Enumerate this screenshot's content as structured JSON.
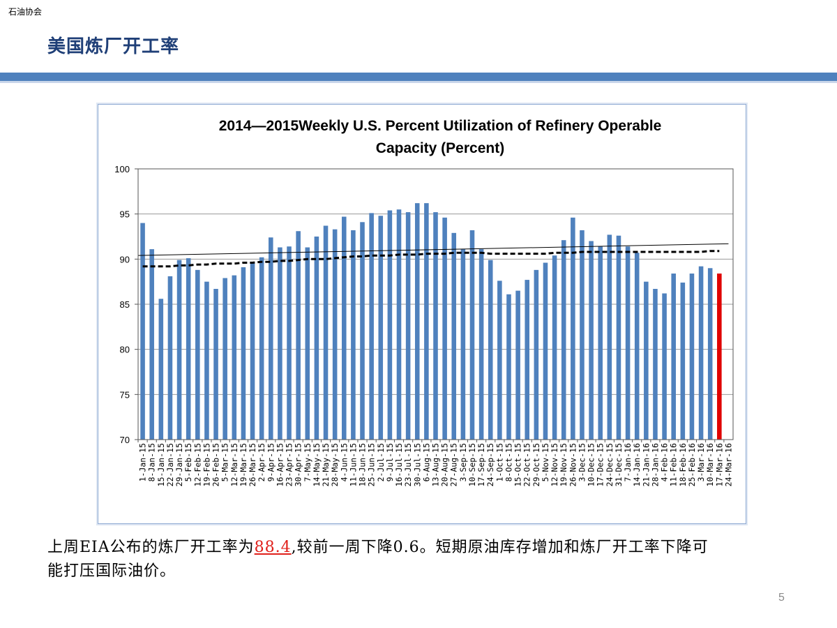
{
  "header": {
    "org": "石油协会",
    "title": "美国炼厂开工率"
  },
  "body": {
    "line1_prefix": "上周EIA公布的炼厂开工率为",
    "highlight": "88.4",
    "line1_suffix": ",较前一周下降0.6。短期原油库存增加和炼厂开工率下降可",
    "line2": "能打压国际油价。"
  },
  "page_number": "5",
  "colors": {
    "bar": "#4f81bd",
    "last_bar": "#e00000",
    "title": "#1f3f77",
    "accent": "#4f81bd"
  },
  "chart_data": {
    "type": "bar",
    "title_line1": "2014—2015Weekly U.S. Percent Utilization of Refinery Operable",
    "title_line2": "Capacity (Percent)",
    "xlabel": "",
    "ylabel": "",
    "ylim": [
      70,
      100
    ],
    "yticks": [
      70,
      75,
      80,
      85,
      90,
      95,
      100
    ],
    "grid": true,
    "categories": [
      "1-Jan-15",
      "8-Jan-15",
      "15-Jan-15",
      "22-Jan-15",
      "29-Jan-15",
      "5-Feb-15",
      "12-Feb-15",
      "19-Feb-15",
      "26-Feb-15",
      "5-Mar-15",
      "12-Mar-15",
      "19-Mar-15",
      "26-Mar-15",
      "2-Apr-15",
      "9-Apr-15",
      "16-Apr-15",
      "23-Apr-15",
      "30-Apr-15",
      "7-May-15",
      "14-May-15",
      "21-May-15",
      "28-May-15",
      "4-Jun-15",
      "11-Jun-15",
      "18-Jun-15",
      "25-Jun-15",
      "2-Jul-15",
      "9-Jul-15",
      "16-Jul-15",
      "23-Jul-15",
      "30-Jul-15",
      "6-Aug-15",
      "13-Aug-15",
      "20-Aug-15",
      "27-Aug-15",
      "3-Sep-15",
      "10-Sep-15",
      "17-Sep-15",
      "24-Sep-15",
      "1-Oct-15",
      "8-Oct-15",
      "15-Oct-15",
      "22-Oct-15",
      "29-Oct-15",
      "5-Nov-15",
      "12-Nov-15",
      "19-Nov-15",
      "26-Nov-15",
      "3-Dec-15",
      "10-Dec-15",
      "17-Dec-15",
      "24-Dec-15",
      "31-Dec-15",
      "7-Jan-16",
      "14-Jan-16",
      "21-Jan-16",
      "28-Jan-16",
      "4-Feb-16",
      "11-Feb-16",
      "18-Feb-16",
      "25-Feb-16",
      "3-Mar-16",
      "10-Mar-16",
      "17-Mar-16",
      "24-Mar-16"
    ],
    "values": [
      94.0,
      91.1,
      85.6,
      88.1,
      89.9,
      90.1,
      88.8,
      87.5,
      86.7,
      87.9,
      88.2,
      89.1,
      89.6,
      90.2,
      92.4,
      91.3,
      91.4,
      93.1,
      91.3,
      92.5,
      93.7,
      93.3,
      94.7,
      93.2,
      94.1,
      95.1,
      94.8,
      95.4,
      95.5,
      95.2,
      96.2,
      96.2,
      95.2,
      94.6,
      92.9,
      91.1,
      93.2,
      91.1,
      89.9,
      87.6,
      86.1,
      86.5,
      87.7,
      88.8,
      89.6,
      90.4,
      92.1,
      94.6,
      93.2,
      92.0,
      91.4,
      92.7,
      92.6,
      91.4,
      90.7,
      87.5,
      86.7,
      86.2,
      88.4,
      87.4,
      88.4,
      89.2,
      89.0,
      88.4,
      null
    ],
    "highlight_index": 63,
    "avg_line": {
      "style": "dashed",
      "values": [
        89.2,
        89.2,
        89.2,
        89.2,
        89.3,
        89.3,
        89.4,
        89.4,
        89.5,
        89.5,
        89.5,
        89.6,
        89.6,
        89.7,
        89.7,
        89.8,
        89.8,
        89.9,
        90.0,
        90.0,
        90.0,
        90.1,
        90.2,
        90.3,
        90.3,
        90.4,
        90.4,
        90.4,
        90.5,
        90.5,
        90.5,
        90.6,
        90.6,
        90.6,
        90.7,
        90.7,
        90.7,
        90.7,
        90.6,
        90.6,
        90.6,
        90.6,
        90.6,
        90.6,
        90.6,
        90.7,
        90.7,
        90.7,
        90.8,
        90.8,
        90.8,
        90.8,
        90.8,
        90.8,
        90.8,
        90.8,
        90.8,
        90.8,
        90.8,
        90.8,
        90.8,
        90.8,
        90.9,
        90.9
      ]
    },
    "trend_line": {
      "start": 90.4,
      "end": 91.7
    }
  }
}
